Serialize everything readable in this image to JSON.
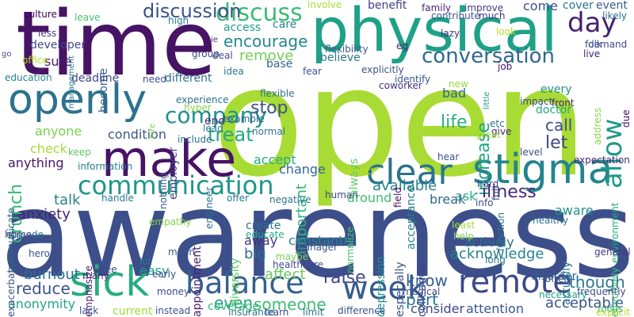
{
  "words": [
    {
      "text": "open",
      "color": "#a8db34"
    },
    {
      "text": "awareness",
      "color": "#3c4f8a"
    },
    {
      "text": "time",
      "color": "#471365"
    },
    {
      "text": "physical",
      "color": "#1fa187"
    },
    {
      "text": "make",
      "color": "#471365"
    },
    {
      "text": "openly",
      "color": "#2c728e"
    },
    {
      "text": "stigma",
      "color": "#25848e"
    },
    {
      "text": "clear",
      "color": "#2c728e"
    },
    {
      "text": "sick",
      "color": "#27ad81"
    },
    {
      "text": "remote",
      "color": "#3e4989"
    },
    {
      "text": "week",
      "color": "#365c8d"
    },
    {
      "text": "balance",
      "color": "#34618d"
    },
    {
      "text": "communication",
      "color": "#1f968b"
    },
    {
      "text": "conversation",
      "color": "#31688e"
    },
    {
      "text": "company",
      "color": "#21918c"
    },
    {
      "text": "allow",
      "color": "#1e9b8a"
    },
    {
      "text": "day",
      "color": "#481f70"
    },
    {
      "text": "discuss",
      "color": "#3dbc74"
    },
    {
      "text": "discussion",
      "color": "#3b528b"
    },
    {
      "text": "increase",
      "color": "#21a585"
    },
    {
      "text": "crunch",
      "color": "#35b779"
    },
    {
      "text": "encourage",
      "color": "#23888e"
    },
    {
      "text": "treat",
      "color": "#22a884"
    },
    {
      "text": "illness",
      "color": "#482878"
    },
    {
      "text": "stop",
      "color": "#3b528b"
    },
    {
      "text": "though",
      "color": "#2a788e"
    },
    {
      "text": "know",
      "color": "#33638d"
    },
    {
      "text": "raise",
      "color": "#404688"
    },
    {
      "text": "life",
      "color": "#29af7f"
    },
    {
      "text": "let",
      "color": "#414487"
    },
    {
      "text": "reduce",
      "color": "#3a548c"
    },
    {
      "text": "someone",
      "color": "#3dbc74"
    },
    {
      "text": "affect",
      "color": "#65cb5e"
    },
    {
      "text": "important",
      "color": "#2fb47c"
    },
    {
      "text": "even",
      "color": "#20a486"
    },
    {
      "text": "part",
      "color": "#2a768e"
    },
    {
      "text": "call",
      "color": "#3e4c8a"
    },
    {
      "text": "remove",
      "color": "#73d056"
    },
    {
      "text": "acceptable",
      "color": "#3b528b"
    },
    {
      "text": "acknowledge",
      "color": "#26828e"
    },
    {
      "text": "burnout",
      "color": "#2e6e8e"
    },
    {
      "text": "anxiety",
      "color": "#482475"
    },
    {
      "text": "talk",
      "color": "#26828e"
    },
    {
      "text": "available",
      "color": "#25848e"
    },
    {
      "text": "accept",
      "color": "#25ab82"
    },
    {
      "text": "condition",
      "color": "#38588c"
    },
    {
      "text": "access",
      "color": "#1f9e89"
    },
    {
      "text": "care",
      "color": "#23898e"
    },
    {
      "text": "sure",
      "color": "#481769"
    },
    {
      "text": "developer",
      "color": "#3e4989"
    },
    {
      "text": "become",
      "color": "#34618d"
    },
    {
      "text": "anything",
      "color": "#481668"
    },
    {
      "text": "anyone",
      "color": "#7ad151"
    },
    {
      "text": "check",
      "color": "#a5db36"
    },
    {
      "text": "change",
      "color": "#31668e"
    },
    {
      "text": "ask",
      "color": "#2ab07f"
    },
    {
      "text": "break",
      "color": "#306a8e"
    },
    {
      "text": "attention",
      "color": "#39568c"
    },
    {
      "text": "consider",
      "color": "#3f4788"
    },
    {
      "text": "big",
      "color": "#2e6f8e"
    },
    {
      "text": "away",
      "color": "#46337f"
    },
    {
      "text": "constantly",
      "color": "#27808e"
    },
    {
      "text": "actively",
      "color": "#31688e"
    },
    {
      "text": "aware",
      "color": "#21918c"
    },
    {
      "text": "around",
      "color": "#3fbc73"
    },
    {
      "text": "easy",
      "color": "#1e9c89"
    },
    {
      "text": "anonymity",
      "color": "#22a785"
    },
    {
      "text": "believe",
      "color": "#2a788e"
    },
    {
      "text": "benefit",
      "color": "#433e85"
    },
    {
      "text": "come",
      "color": "#3c4f8a"
    },
    {
      "text": "bad",
      "color": "#34618d"
    },
    {
      "text": "end",
      "color": "#46307e"
    },
    {
      "text": "base",
      "color": "#32658e"
    },
    {
      "text": "deadline",
      "color": "#3f4889"
    },
    {
      "text": "education",
      "color": "#27808e"
    },
    {
      "text": "different",
      "color": "#2d708e"
    },
    {
      "text": "culture",
      "color": "#440154"
    },
    {
      "text": "cover",
      "color": "#2a778e"
    },
    {
      "text": "event",
      "color": "#355f8d"
    },
    {
      "text": "every",
      "color": "#21918c"
    },
    {
      "text": "doctor",
      "color": "#22a884"
    },
    {
      "text": "always",
      "color": "#5ec962"
    },
    {
      "text": "acceptance",
      "color": "#287c8e"
    },
    {
      "text": "actually",
      "color": "#2c718e"
    },
    {
      "text": "coworker",
      "color": "#46327e"
    },
    {
      "text": "etc",
      "color": "#2c718e"
    },
    {
      "text": "example",
      "color": "#306a8e"
    },
    {
      "text": "employer",
      "color": "#404588"
    },
    {
      "text": "appointment",
      "color": "#482071"
    },
    {
      "text": "diversity",
      "color": "#5ec962"
    },
    {
      "text": "create",
      "color": "#2c728e"
    },
    {
      "text": "educate",
      "color": "#27ad81"
    },
    {
      "text": "colleague",
      "color": "#404588"
    },
    {
      "text": "depression",
      "color": "#228c8d"
    },
    {
      "text": "especially",
      "color": "#3c508b"
    },
    {
      "text": "empathy",
      "color": "#86d549"
    },
    {
      "text": "emphasize",
      "color": "#481a6c"
    },
    {
      "text": "episode",
      "color": "#2c738e"
    },
    {
      "text": "exacerbate",
      "color": "#3c508b"
    },
    {
      "text": "address",
      "color": "#89d548"
    },
    {
      "text": "communicate",
      "color": "#32658e"
    },
    {
      "text": "disorder",
      "color": "#32648e"
    },
    {
      "text": "demand",
      "color": "#3e4989"
    },
    {
      "text": "likely",
      "color": "#2d708e"
    },
    {
      "text": "effectively",
      "color": "#3dbc74"
    },
    {
      "text": "environment",
      "color": "#25ab82"
    },
    {
      "text": "due",
      "color": "#460b5e"
    },
    {
      "text": "expectation",
      "color": "#482475"
    },
    {
      "text": "frequently",
      "color": "#3e4a89"
    },
    {
      "text": "general",
      "color": "#453781"
    },
    {
      "text": "necessary",
      "color": "#1fa088"
    },
    {
      "text": "focus",
      "color": "#29af7f"
    },
    {
      "text": "explicit",
      "color": "#bddf26"
    },
    {
      "text": "contribute",
      "color": "#3b528b"
    },
    {
      "text": "improve",
      "color": "#443a83"
    },
    {
      "text": "family",
      "color": "#482777"
    },
    {
      "text": "much",
      "color": "#463480"
    },
    {
      "text": "high",
      "color": "#2a778e"
    },
    {
      "text": "leave",
      "color": "#4ac16d"
    },
    {
      "text": "involve",
      "color": "#addc30"
    },
    {
      "text": "less",
      "color": "#443983"
    },
    {
      "text": "go",
      "color": "#3e4a89"
    },
    {
      "text": "office",
      "color": "#b5de2b"
    },
    {
      "text": "management",
      "color": "#2c738e"
    },
    {
      "text": "group",
      "color": "#3e4a89"
    },
    {
      "text": "deal",
      "color": "#3e4c8a"
    },
    {
      "text": "flexibility",
      "color": "#38588c"
    },
    {
      "text": "eg",
      "color": "#482878"
    },
    {
      "text": "lazy",
      "color": "#46337f"
    },
    {
      "text": "look",
      "color": "#bddf26"
    },
    {
      "text": "folk",
      "color": "#3b528b"
    },
    {
      "text": "live",
      "color": "#482475"
    },
    {
      "text": "ie",
      "color": "#482878"
    },
    {
      "text": "fear",
      "color": "#3b528b"
    },
    {
      "text": "idea",
      "color": "#2a788e"
    },
    {
      "text": "need",
      "color": "#3b528b"
    },
    {
      "text": "explicitly",
      "color": "#3b528b"
    },
    {
      "text": "identify",
      "color": "#39568c"
    },
    {
      "text": "job",
      "color": "#481467"
    },
    {
      "text": "new",
      "color": "#95d840"
    },
    {
      "text": "flexible",
      "color": "#2c738e"
    },
    {
      "text": "experience",
      "color": "#2c728e"
    },
    {
      "text": "hyper",
      "color": "#84d44b"
    },
    {
      "text": "hire",
      "color": "#84d44b"
    },
    {
      "text": "lead",
      "color": "#2a778e"
    },
    {
      "text": "include",
      "color": "#2c718e"
    },
    {
      "text": "normal",
      "color": "#2c738e"
    },
    {
      "text": "little",
      "color": "#1f9e89"
    },
    {
      "text": "impact",
      "color": "#3e4989"
    },
    {
      "text": "give",
      "color": "#482475"
    },
    {
      "text": "great",
      "color": "#9bd93c"
    },
    {
      "text": "front",
      "color": "#482071"
    },
    {
      "text": "level",
      "color": "#3e4989"
    },
    {
      "text": "keep",
      "color": "#5cc863"
    },
    {
      "text": "nothing",
      "color": "#39568c"
    },
    {
      "text": "information",
      "color": "#287c8e"
    },
    {
      "text": "good",
      "color": "#a0da39"
    },
    {
      "text": "field",
      "color": "#471164"
    },
    {
      "text": "hear",
      "color": "#3c508b"
    },
    {
      "text": "expect",
      "color": "#b8de29"
    },
    {
      "text": "hard",
      "color": "#3e4989"
    },
    {
      "text": "full",
      "color": "#3b528b"
    },
    {
      "text": "handle",
      "color": "#2a788e"
    },
    {
      "text": "engineer",
      "color": "#2c718e"
    },
    {
      "text": "offer",
      "color": "#2a768e"
    },
    {
      "text": "negative",
      "color": "#2c738e"
    },
    {
      "text": "human",
      "color": "#3e4989"
    },
    {
      "text": "normalize",
      "color": "#4ac16d"
    },
    {
      "text": "info",
      "color": "#3e4989"
    },
    {
      "text": "least",
      "color": "#a2da37"
    },
    {
      "text": "help",
      "color": "#84d44b"
    },
    {
      "text": "function",
      "color": "#2a788e"
    },
    {
      "text": "healthy",
      "color": "#2d708e"
    },
    {
      "text": "home",
      "color": "#3e4989"
    },
    {
      "text": "hero",
      "color": "#3b528b"
    },
    {
      "text": "mean",
      "color": "#3b528b"
    },
    {
      "text": "manager",
      "color": "#3b528b"
    },
    {
      "text": "maybe",
      "color": "#7ad151"
    },
    {
      "text": "healthcare",
      "color": "#3e4989"
    },
    {
      "text": "lot",
      "color": "#2c738e"
    },
    {
      "text": "free",
      "color": "#3e4989"
    },
    {
      "text": "many",
      "color": "#482878"
    },
    {
      "text": "early",
      "color": "#3b528b"
    },
    {
      "text": "lack",
      "color": "#3b528b"
    },
    {
      "text": "money",
      "color": "#3e4989"
    },
    {
      "text": "instead",
      "color": "#3b528b"
    },
    {
      "text": "current",
      "color": "#a2da37"
    },
    {
      "text": "coverage",
      "color": "#35b779"
    },
    {
      "text": "insurance",
      "color": "#2a788e"
    },
    {
      "text": "learn",
      "color": "#3e4989"
    },
    {
      "text": "limit",
      "color": "#2c728e"
    },
    {
      "text": "difference",
      "color": "#3b528b"
    },
    {
      "text": "medical",
      "color": "#3e4989"
    },
    {
      "text": "long",
      "color": "#2a788e"
    },
    {
      "text": "often",
      "color": "#3b528b"
    }
  ]
}
